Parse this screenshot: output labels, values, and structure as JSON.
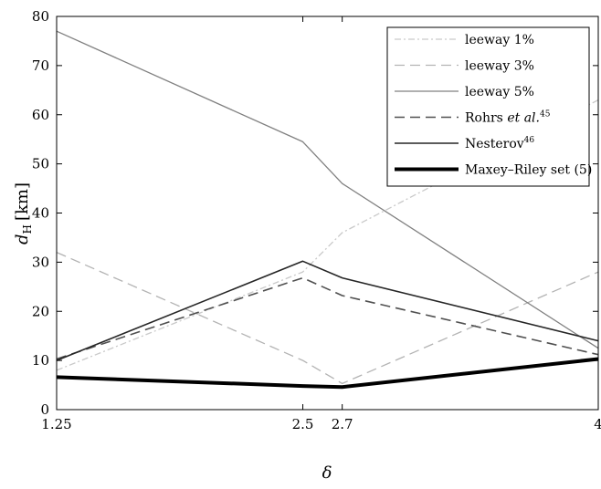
{
  "chart_data": {
    "type": "line",
    "xlabel": "δ",
    "ylabel_main": "d",
    "ylabel_sub": "H",
    "ylabel_unit": "[km]",
    "xlim": [
      1.25,
      4
    ],
    "ylim": [
      0,
      80
    ],
    "x_ticks": [
      1.25,
      2.5,
      2.7,
      4
    ],
    "x_tick_labels": [
      "1.25",
      "2.5",
      "2.7",
      "4"
    ],
    "y_ticks": [
      0,
      10,
      20,
      30,
      40,
      50,
      60,
      70,
      80
    ],
    "y_tick_labels": [
      "0",
      "10",
      "20",
      "30",
      "40",
      "50",
      "60",
      "70",
      "80"
    ],
    "grid": false,
    "legend_position": "top-right",
    "x": [
      1.25,
      2.5,
      2.7,
      4
    ],
    "series": [
      {
        "id": "leeway1",
        "legend_parts": [
          {
            "t": "leeway 1%"
          }
        ],
        "values": [
          8,
          28,
          36,
          63
        ],
        "color": "#c9c9c9",
        "width": 1.3,
        "dash": "7 3 2 3"
      },
      {
        "id": "leeway3",
        "legend_parts": [
          {
            "t": "leeway 3%"
          }
        ],
        "values": [
          32,
          10,
          5.3,
          28
        ],
        "color": "#b3b3b3",
        "width": 1.3,
        "dash": "11 6"
      },
      {
        "id": "leeway5",
        "legend_parts": [
          {
            "t": "leeway 5%"
          }
        ],
        "values": [
          77,
          54.5,
          46,
          12.5
        ],
        "color": "#808080",
        "width": 1.3,
        "dash": ""
      },
      {
        "id": "rohrs",
        "legend_parts": [
          {
            "t": "Rohrs "
          },
          {
            "t": "et al.",
            "italic": true
          },
          {
            "t": "45",
            "sup": true
          }
        ],
        "values": [
          10.3,
          26.8,
          23.2,
          11.2
        ],
        "color": "#505050",
        "width": 1.6,
        "dash": "11 6"
      },
      {
        "id": "nesterov",
        "legend_parts": [
          {
            "t": "Nesterov"
          },
          {
            "t": "46",
            "sup": true
          }
        ],
        "values": [
          10,
          30.2,
          26.8,
          14
        ],
        "color": "#262626",
        "width": 1.6,
        "dash": ""
      },
      {
        "id": "maxey",
        "legend_parts": [
          {
            "t": "Maxey–Riley set (5)"
          }
        ],
        "values": [
          6.6,
          4.8,
          4.6,
          10.3
        ],
        "color": "#000000",
        "width": 4,
        "dash": ""
      }
    ]
  }
}
